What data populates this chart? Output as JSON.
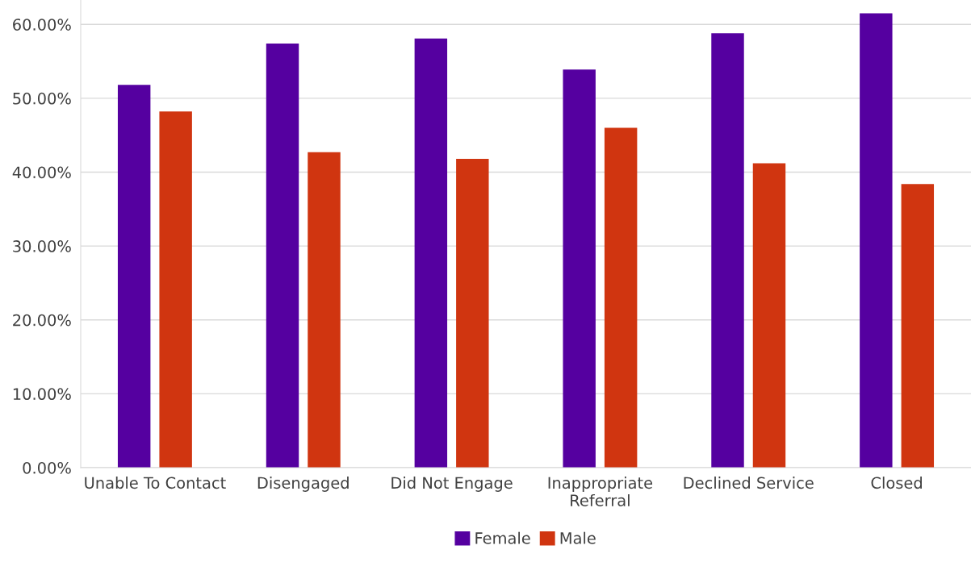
{
  "chart_data": {
    "type": "bar",
    "categories": [
      "Unable To Contact",
      "Disengaged",
      "Did Not Engage",
      "Inappropriate\nReferral",
      "Declined Service",
      "Closed"
    ],
    "series": [
      {
        "name": "Female",
        "color": "#5500a0",
        "values": [
          51.8,
          57.4,
          58.1,
          53.9,
          58.8,
          61.5
        ]
      },
      {
        "name": "Male",
        "color": "#d03510",
        "values": [
          48.2,
          42.7,
          41.8,
          46.0,
          41.2,
          38.4
        ]
      }
    ],
    "ylim": [
      0,
      63.3
    ],
    "yticks": [
      {
        "value": 0,
        "label": "0.00%"
      },
      {
        "value": 10,
        "label": "10.00%"
      },
      {
        "value": 20,
        "label": "20.00%"
      },
      {
        "value": 30,
        "label": "30.00%"
      },
      {
        "value": 40,
        "label": "40.00%"
      },
      {
        "value": 50,
        "label": "50.00%"
      },
      {
        "value": 60,
        "label": "60.00%"
      }
    ],
    "grid": "y",
    "legend": "bottom"
  }
}
